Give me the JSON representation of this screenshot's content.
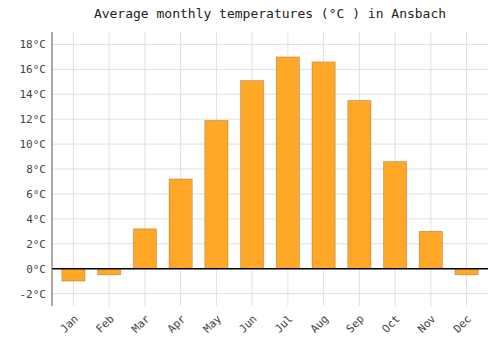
{
  "chart_data": {
    "type": "bar",
    "title": "Average monthly temperatures (°C ) in Ansbach",
    "categories": [
      "Jan",
      "Feb",
      "Mar",
      "Apr",
      "May",
      "Jun",
      "Jul",
      "Aug",
      "Sep",
      "Oct",
      "Nov",
      "Dec"
    ],
    "values": [
      -1.0,
      -0.5,
      3.2,
      7.2,
      11.9,
      15.1,
      17.0,
      16.6,
      13.5,
      8.6,
      3.0,
      -0.5
    ],
    "color": "#FFA726",
    "ylim": [
      -3,
      19
    ],
    "yticks": [
      {
        "value": -2,
        "label": "-2°C"
      },
      {
        "value": 0,
        "label": "0°C"
      },
      {
        "value": 2,
        "label": "2°C"
      },
      {
        "value": 4,
        "label": "4°C"
      },
      {
        "value": 6,
        "label": "6°C"
      },
      {
        "value": 8,
        "label": "8°C"
      },
      {
        "value": 10,
        "label": "10°C"
      },
      {
        "value": 12,
        "label": "12°C"
      },
      {
        "value": 14,
        "label": "14°C"
      },
      {
        "value": 16,
        "label": "16°C"
      },
      {
        "value": 18,
        "label": "18°C"
      }
    ],
    "grid": true
  }
}
